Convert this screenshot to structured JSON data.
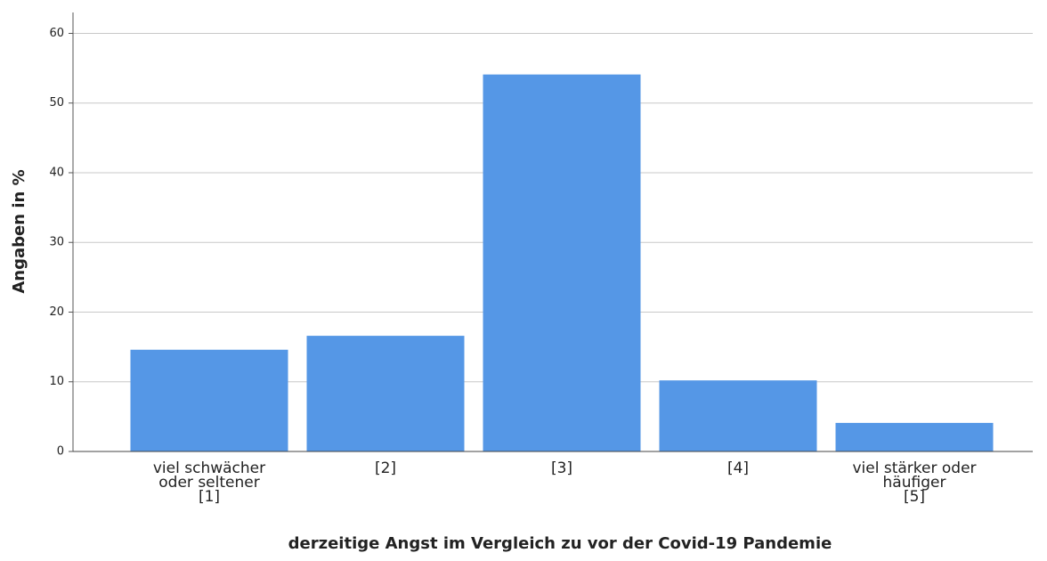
{
  "chart_data": {
    "type": "bar",
    "x_label": "derzeitige Angst im Vergleich zu vor der Covid-19 Pandemie",
    "y_label": "Angaben in %",
    "categories": [
      "viel schwächer\noder seltener\n[1]",
      "[2]",
      "[3]",
      "[4]",
      "viel stärker oder\nhäufiger\n[5]"
    ],
    "values": [
      14.6,
      16.6,
      54.1,
      10.2,
      4.1
    ],
    "color": "#5597e6",
    "ylim": [
      0,
      63
    ],
    "yticks": [
      0,
      10,
      20,
      30,
      40,
      50,
      60
    ],
    "grid": true
  }
}
